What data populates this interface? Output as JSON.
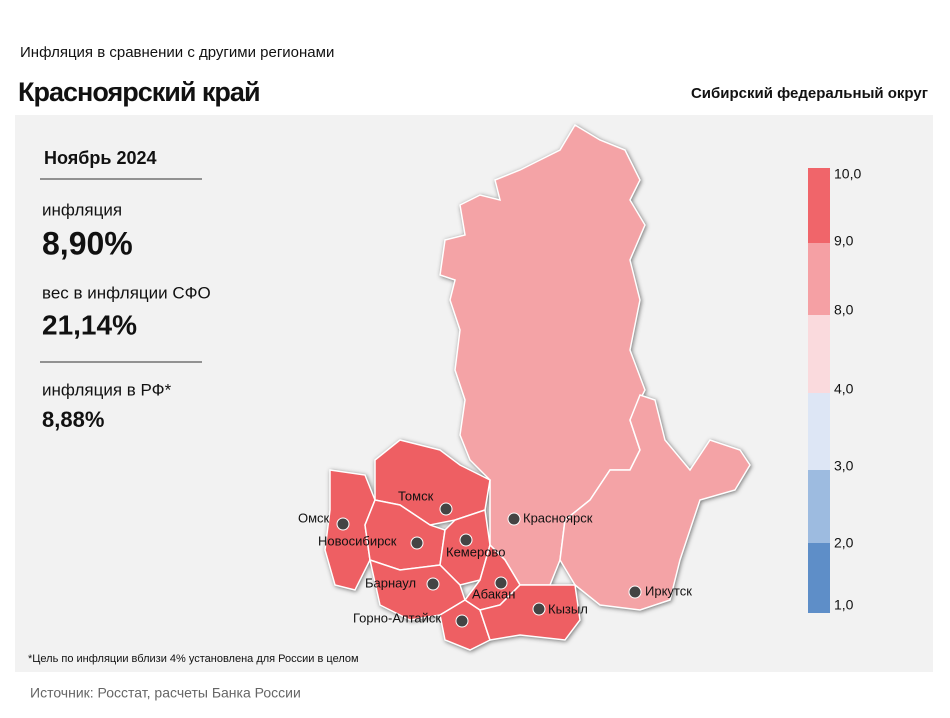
{
  "header": {
    "subtitle": "Инфляция в сравнении с другими регионами",
    "title": "Красноярский край",
    "district": "Сибирский федеральный округ"
  },
  "panel": {
    "period": "Ноябрь 2024",
    "inflation_label": "инфляция",
    "inflation_value": "8,90%",
    "weight_label": "вес в инфляции СФО",
    "weight_value": "21,14%",
    "rf_label": "инфляция в РФ*",
    "rf_value": "8,88%"
  },
  "legend": {
    "labels": [
      "10,0",
      "9,0",
      "8,0",
      "4,0",
      "3,0",
      "2,0",
      "1,0"
    ],
    "colors": [
      "#f0656a",
      "#f5a0a4",
      "#fadadd",
      "#dde6f5",
      "#9dbbe0",
      "#5e8ec8"
    ]
  },
  "cities": [
    "Томск",
    "Омск",
    "Новосибирск",
    "Кемерово",
    "Красноярск",
    "Барнаул",
    "Абакан",
    "Горно-Алтайск",
    "Кызыл",
    "Иркутск"
  ],
  "footnote": "*Цель по инфляции вблизи 4% установлена для России в целом",
  "source": "Источник: Росстат, расчеты Банка России"
}
